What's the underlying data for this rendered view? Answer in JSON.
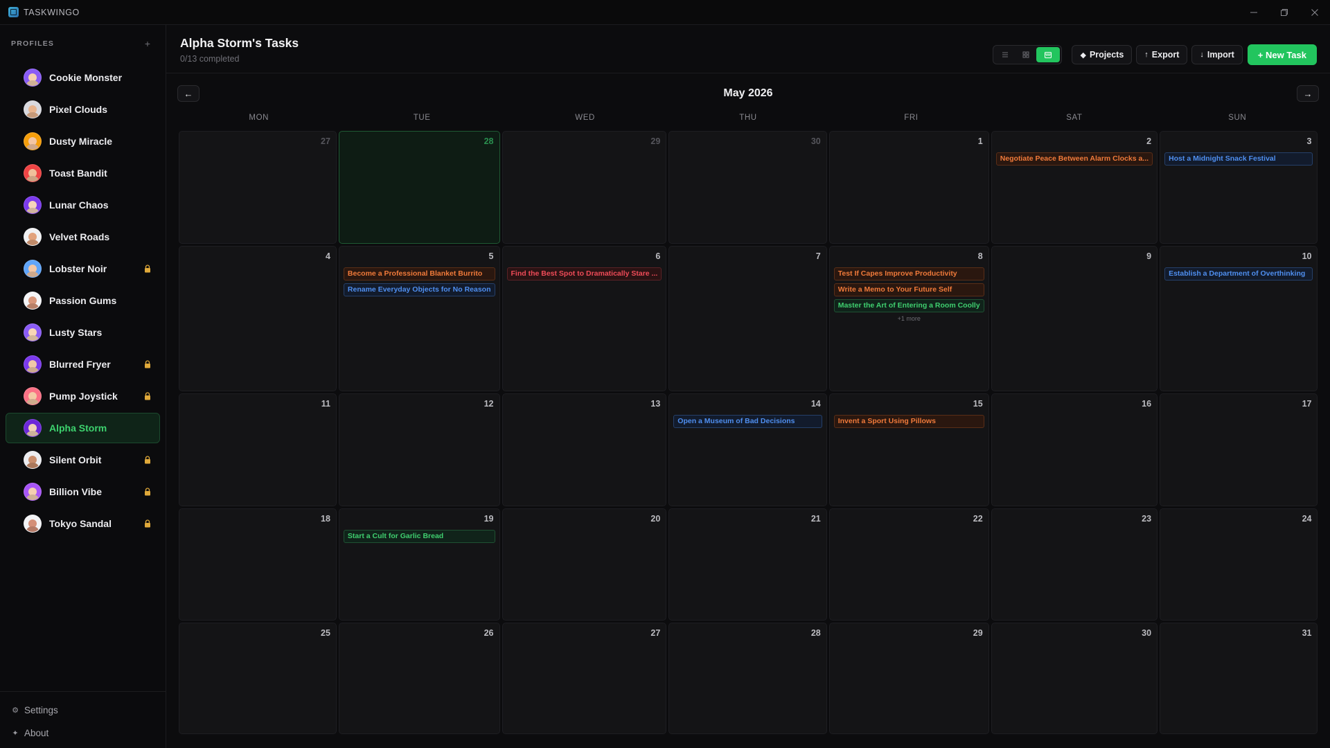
{
  "app": {
    "name": "TASKWINGO"
  },
  "colors": {
    "accent": "#22c55e",
    "orange": "#f07a3a",
    "blue": "#4f8ff0",
    "red": "#ef4b58",
    "green": "#3fcf6f"
  },
  "sidebar": {
    "section_title": "PROFILES",
    "add_icon": "plus-icon",
    "profiles": [
      {
        "name": "Cookie Monster",
        "locked": false,
        "color": "#8a5cf6",
        "skin": "#f5d0b0"
      },
      {
        "name": "Pixel Clouds",
        "locked": false,
        "color": "#d9d9de",
        "skin": "#e8b48e"
      },
      {
        "name": "Dusty Miracle",
        "locked": false,
        "color": "#f59e0b",
        "skin": "#f3c6a4"
      },
      {
        "name": "Toast Bandit",
        "locked": false,
        "color": "#ef4444",
        "skin": "#f0c09a"
      },
      {
        "name": "Lunar Chaos",
        "locked": false,
        "color": "#7c3aed",
        "skin": "#f5d4bb"
      },
      {
        "name": "Velvet Roads",
        "locked": false,
        "color": "#f1f1f3",
        "skin": "#e2a27c"
      },
      {
        "name": "Lobster Noir",
        "locked": true,
        "color": "#60a5fa",
        "skin": "#f2c7a6"
      },
      {
        "name": "Passion Gums",
        "locked": false,
        "color": "#f4f4f6",
        "skin": "#d8967a"
      },
      {
        "name": "Lusty Stars",
        "locked": false,
        "color": "#8b5cf6",
        "skin": "#f7d6b5"
      },
      {
        "name": "Blurred Fryer",
        "locked": true,
        "color": "#7c3aed",
        "skin": "#f0c8a8"
      },
      {
        "name": "Pump Joystick",
        "locked": true,
        "color": "#fb7185",
        "skin": "#f3caa6"
      },
      {
        "name": "Alpha Storm",
        "locked": false,
        "active": true,
        "color": "#6d28d9",
        "skin": "#f1d2b8"
      },
      {
        "name": "Silent Orbit",
        "locked": true,
        "color": "#ececef",
        "skin": "#c98d6b"
      },
      {
        "name": "Billion Vibe",
        "locked": true,
        "color": "#a855f7",
        "skin": "#f4cfb1"
      },
      {
        "name": "Tokyo Sandal",
        "locked": true,
        "color": "#f3f3f5",
        "skin": "#d48f78"
      }
    ],
    "footer": [
      {
        "label": "Settings",
        "icon": "gear-icon",
        "glyph": "⚙"
      },
      {
        "label": "About",
        "icon": "sparkle-icon",
        "glyph": "✦"
      }
    ]
  },
  "header": {
    "title": "Alpha Storm's Tasks",
    "subtitle": "0/13 completed",
    "view_modes": [
      "list-icon",
      "grid-icon",
      "calendar-icon"
    ],
    "active_view": "calendar-icon",
    "buttons": {
      "projects": {
        "label": "Projects",
        "icon": "diamond-icon",
        "glyph": "◆"
      },
      "export": {
        "label": "Export",
        "icon": "arrow-up-icon",
        "glyph": "↑"
      },
      "import": {
        "label": "Import",
        "icon": "arrow-down-icon",
        "glyph": "↓"
      },
      "new_task": {
        "label": "+ New Task"
      }
    }
  },
  "calendar": {
    "month_label": "May 2026",
    "prev_icon": "arrow-left-icon",
    "next_icon": "arrow-right-icon",
    "weekdays": [
      "MON",
      "TUE",
      "WED",
      "THU",
      "FRI",
      "SAT",
      "SUN"
    ],
    "weeks": [
      [
        {
          "day": "27",
          "other": true,
          "tasks": []
        },
        {
          "day": "28",
          "other": true,
          "today": true,
          "tasks": []
        },
        {
          "day": "29",
          "other": true,
          "tasks": []
        },
        {
          "day": "30",
          "other": true,
          "tasks": []
        },
        {
          "day": "1",
          "tasks": []
        },
        {
          "day": "2",
          "tasks": [
            {
              "title": "Negotiate Peace Between Alarm Clocks a...",
              "color": "orange"
            }
          ]
        },
        {
          "day": "3",
          "tasks": [
            {
              "title": "Host a Midnight Snack Festival",
              "color": "blue"
            }
          ]
        }
      ],
      [
        {
          "day": "4",
          "tasks": []
        },
        {
          "day": "5",
          "tasks": [
            {
              "title": "Become a Professional Blanket Burrito",
              "color": "orange"
            },
            {
              "title": "Rename Everyday Objects for No Reason",
              "color": "blue"
            }
          ]
        },
        {
          "day": "6",
          "tasks": [
            {
              "title": "Find the Best Spot to Dramatically Stare ...",
              "color": "red"
            }
          ]
        },
        {
          "day": "7",
          "tasks": []
        },
        {
          "day": "8",
          "tasks": [
            {
              "title": "Test If Capes Improve Productivity",
              "color": "orange"
            },
            {
              "title": "Write a Memo to Your Future Self",
              "color": "orange"
            },
            {
              "title": "Master the Art of Entering a Room Coolly",
              "color": "green"
            }
          ],
          "more": "+1 more"
        },
        {
          "day": "9",
          "tasks": []
        },
        {
          "day": "10",
          "tasks": [
            {
              "title": "Establish a Department of Overthinking",
              "color": "blue"
            }
          ]
        }
      ],
      [
        {
          "day": "11",
          "tasks": []
        },
        {
          "day": "12",
          "tasks": []
        },
        {
          "day": "13",
          "tasks": []
        },
        {
          "day": "14",
          "tasks": [
            {
              "title": "Open a Museum of Bad Decisions",
              "color": "blue"
            }
          ]
        },
        {
          "day": "15",
          "tasks": [
            {
              "title": "Invent a Sport Using Pillows",
              "color": "orange"
            }
          ]
        },
        {
          "day": "16",
          "tasks": []
        },
        {
          "day": "17",
          "tasks": []
        }
      ],
      [
        {
          "day": "18",
          "tasks": []
        },
        {
          "day": "19",
          "tasks": [
            {
              "title": "Start a Cult for Garlic Bread",
              "color": "green"
            }
          ]
        },
        {
          "day": "20",
          "tasks": []
        },
        {
          "day": "21",
          "tasks": []
        },
        {
          "day": "22",
          "tasks": []
        },
        {
          "day": "23",
          "tasks": []
        },
        {
          "day": "24",
          "tasks": []
        }
      ],
      [
        {
          "day": "25",
          "tasks": []
        },
        {
          "day": "26",
          "tasks": []
        },
        {
          "day": "27",
          "tasks": []
        },
        {
          "day": "28",
          "tasks": []
        },
        {
          "day": "29",
          "tasks": []
        },
        {
          "day": "30",
          "tasks": []
        },
        {
          "day": "31",
          "tasks": []
        }
      ]
    ]
  }
}
